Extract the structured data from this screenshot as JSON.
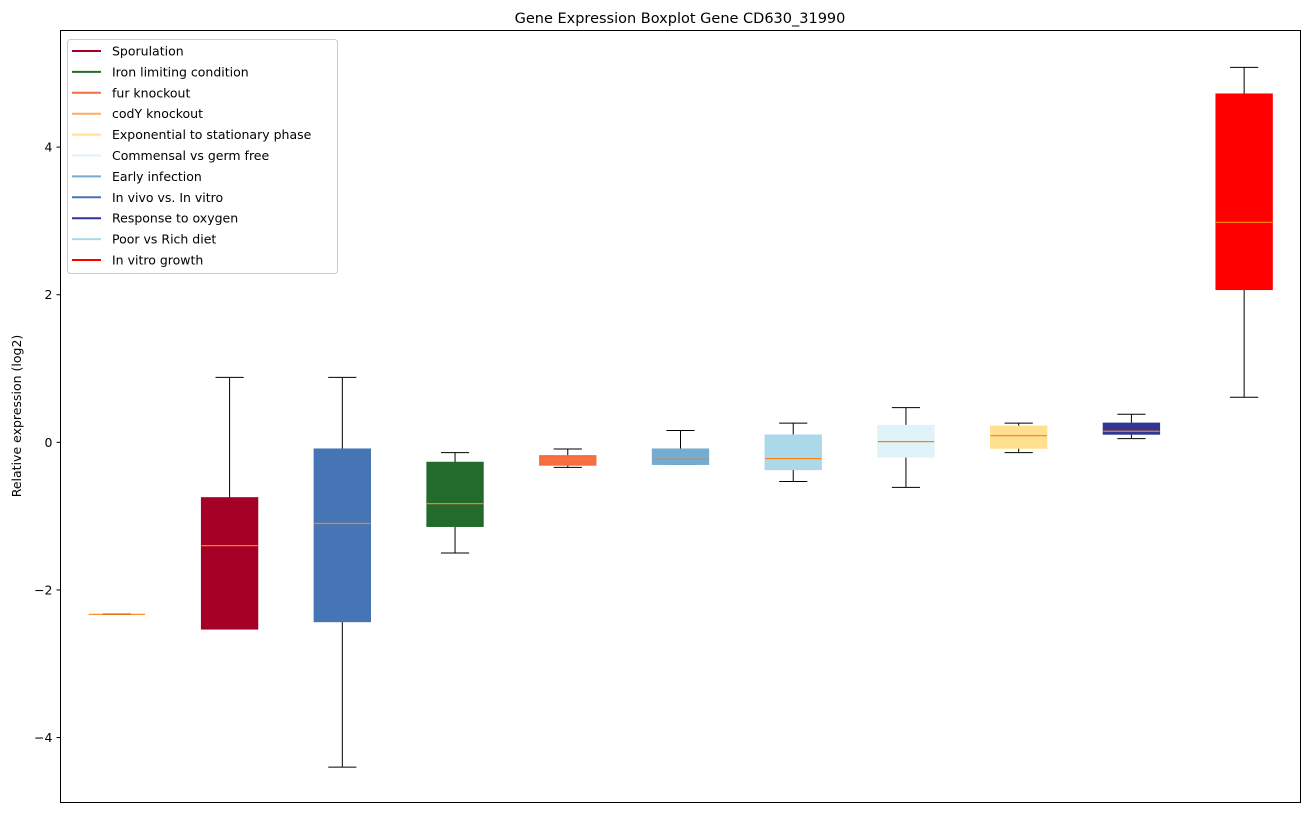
{
  "chart_data": {
    "type": "boxplot",
    "title": "Gene Expression Boxplot Gene CD630_31990",
    "xlabel": "",
    "ylabel": "Relative expression (log2)",
    "ylim": [
      -4.88,
      5.58
    ],
    "yticks": [
      -4,
      -2,
      0,
      2,
      4
    ],
    "ytick_labels": [
      "−4",
      "−2",
      "0",
      "2",
      "4"
    ],
    "grid": false,
    "legend_placement": "top-left",
    "median_color": "#ff7f0e",
    "legend": [
      {
        "label": "Sporulation",
        "color": "#a50026"
      },
      {
        "label": "Iron limiting condition",
        "color": "#226b2d"
      },
      {
        "label": "fur knockout",
        "color": "#f46d43"
      },
      {
        "label": "codY knockout",
        "color": "#fdae61"
      },
      {
        "label": "Exponential to stationary phase",
        "color": "#fee090"
      },
      {
        "label": "Commensal vs germ free",
        "color": "#e0f3f8"
      },
      {
        "label": "Early infection",
        "color": "#74add1"
      },
      {
        "label": "In vivo vs. In vitro",
        "color": "#4575b4"
      },
      {
        "label": "Response to oxygen",
        "color": "#313695"
      },
      {
        "label": "Poor vs Rich diet",
        "color": "#abd9e9"
      },
      {
        "label": "In vitro growth",
        "color": "#ff0000"
      }
    ],
    "boxes": [
      {
        "group": "codY knockout",
        "color": "#fdae61",
        "min": -2.33,
        "q1": -2.33,
        "median": -2.33,
        "q3": -2.33,
        "max": -2.33
      },
      {
        "group": "Sporulation",
        "color": "#a50026",
        "min": -2.53,
        "q1": -2.53,
        "median": -1.4,
        "q3": -0.75,
        "max": 0.88
      },
      {
        "group": "In vivo vs. In vitro",
        "color": "#4575b4",
        "min": -4.4,
        "q1": -2.43,
        "median": -1.1,
        "q3": -0.09,
        "max": 0.88
      },
      {
        "group": "Iron limiting condition",
        "color": "#226b2d",
        "min": -1.5,
        "q1": -1.14,
        "median": -0.83,
        "q3": -0.27,
        "max": -0.14
      },
      {
        "group": "fur knockout",
        "color": "#f46d43",
        "min": -0.34,
        "q1": -0.31,
        "median": -0.23,
        "q3": -0.18,
        "max": -0.09
      },
      {
        "group": "Early infection",
        "color": "#74add1",
        "min": -0.3,
        "q1": -0.3,
        "median": -0.23,
        "q3": -0.09,
        "max": 0.16
      },
      {
        "group": "Poor vs Rich diet",
        "color": "#abd9e9",
        "min": -0.53,
        "q1": -0.37,
        "median": -0.22,
        "q3": 0.1,
        "max": 0.26
      },
      {
        "group": "Commensal vs germ free",
        "color": "#e0f3f8",
        "min": -0.61,
        "q1": -0.2,
        "median": 0.01,
        "q3": 0.23,
        "max": 0.47
      },
      {
        "group": "Exponential to stationary phase",
        "color": "#fee090",
        "min": -0.14,
        "q1": -0.08,
        "median": 0.09,
        "q3": 0.22,
        "max": 0.26
      },
      {
        "group": "Response to oxygen",
        "color": "#313695",
        "min": 0.05,
        "q1": 0.11,
        "median": 0.15,
        "q3": 0.26,
        "max": 0.38
      },
      {
        "group": "In vitro growth",
        "color": "#ff0000",
        "min": 0.61,
        "q1": 2.07,
        "median": 2.98,
        "q3": 4.72,
        "max": 5.08
      }
    ]
  }
}
